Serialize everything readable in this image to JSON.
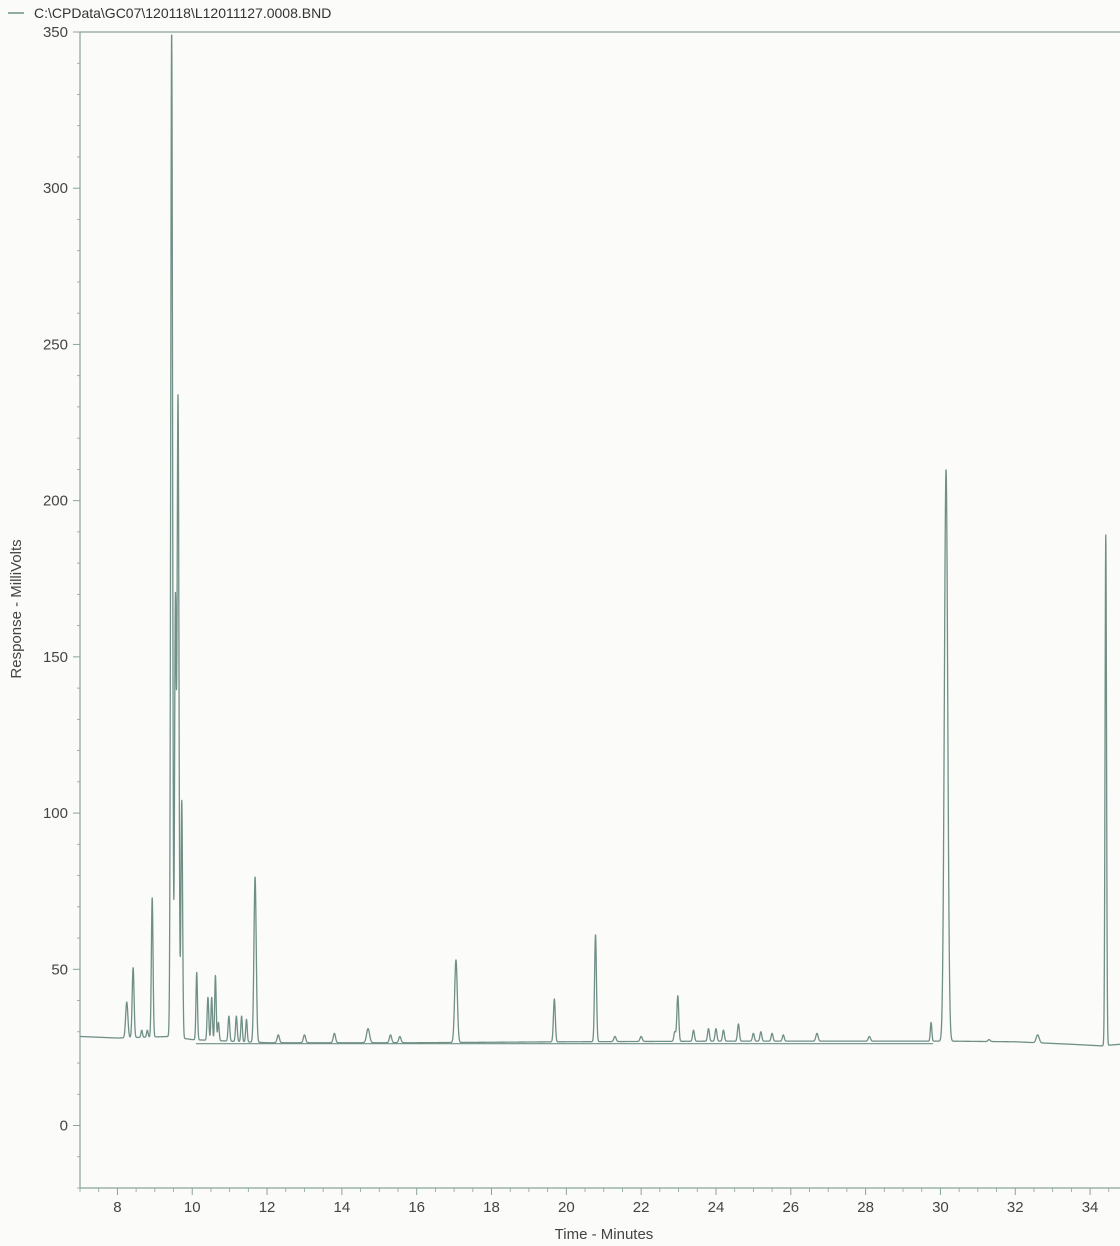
{
  "chart_data": {
    "type": "line",
    "title": "",
    "legend": {
      "placement": "top-left",
      "label": "C:\\CPData\\GC07\\120118\\L12011127.0008.BND"
    },
    "xlabel": "Time - Minutes",
    "ylabel": "Response - MilliVolts",
    "xlim": [
      7.0,
      34.8
    ],
    "ylim": [
      -20,
      350
    ],
    "xticks": [
      8,
      10,
      12,
      14,
      16,
      18,
      20,
      22,
      24,
      26,
      28,
      30,
      32,
      34
    ],
    "yticks": [
      0,
      50,
      100,
      150,
      200,
      250,
      300,
      350
    ],
    "grid": false,
    "color": "#6f8f87",
    "series": [
      {
        "baseline": [
          [
            7.0,
            28.5
          ],
          [
            8.0,
            28.0
          ],
          [
            9.4,
            28.5
          ],
          [
            10.0,
            27.5
          ],
          [
            12.0,
            26.5
          ],
          [
            16.0,
            26.5
          ],
          [
            20.0,
            26.8
          ],
          [
            24.0,
            27.0
          ],
          [
            28.0,
            27.0
          ],
          [
            29.8,
            27.0
          ],
          [
            30.3,
            27.0
          ],
          [
            32.0,
            26.8
          ],
          [
            33.5,
            26.0
          ],
          [
            34.3,
            25.5
          ],
          [
            34.8,
            26.0
          ]
        ],
        "baseline2": [
          [
            10.1,
            26.2
          ],
          [
            29.8,
            26.2
          ]
        ],
        "peaks": [
          {
            "rt": 8.25,
            "h": 39.5,
            "w": 0.03
          },
          {
            "rt": 8.42,
            "h": 50.5,
            "w": 0.025
          },
          {
            "rt": 8.65,
            "h": 30.5,
            "w": 0.02
          },
          {
            "rt": 8.8,
            "h": 30.5,
            "w": 0.02
          },
          {
            "rt": 8.93,
            "h": 73.0,
            "w": 0.022
          },
          {
            "rt": 9.45,
            "h": 350,
            "w": 0.025
          },
          {
            "rt": 9.55,
            "h": 166,
            "w": 0.022
          },
          {
            "rt": 9.62,
            "h": 233,
            "w": 0.025
          },
          {
            "rt": 9.72,
            "h": 104,
            "w": 0.022
          },
          {
            "rt": 10.12,
            "h": 49,
            "w": 0.02
          },
          {
            "rt": 10.42,
            "h": 41,
            "w": 0.022
          },
          {
            "rt": 10.52,
            "h": 41,
            "w": 0.02
          },
          {
            "rt": 10.62,
            "h": 48,
            "w": 0.02
          },
          {
            "rt": 10.7,
            "h": 33,
            "w": 0.02
          },
          {
            "rt": 10.98,
            "h": 35,
            "w": 0.022
          },
          {
            "rt": 11.18,
            "h": 35,
            "w": 0.022
          },
          {
            "rt": 11.32,
            "h": 35,
            "w": 0.02
          },
          {
            "rt": 11.45,
            "h": 34,
            "w": 0.02
          },
          {
            "rt": 11.68,
            "h": 79.5,
            "w": 0.03
          },
          {
            "rt": 12.3,
            "h": 29,
            "w": 0.03
          },
          {
            "rt": 13.0,
            "h": 29,
            "w": 0.03
          },
          {
            "rt": 13.8,
            "h": 29.5,
            "w": 0.03
          },
          {
            "rt": 14.7,
            "h": 31,
            "w": 0.04
          },
          {
            "rt": 15.3,
            "h": 29,
            "w": 0.03
          },
          {
            "rt": 15.55,
            "h": 28.5,
            "w": 0.03
          },
          {
            "rt": 17.05,
            "h": 53,
            "w": 0.035
          },
          {
            "rt": 19.68,
            "h": 40.5,
            "w": 0.025
          },
          {
            "rt": 20.78,
            "h": 61,
            "w": 0.025
          },
          {
            "rt": 21.3,
            "h": 28.5,
            "w": 0.03
          },
          {
            "rt": 22.0,
            "h": 28.5,
            "w": 0.03
          },
          {
            "rt": 22.9,
            "h": 30,
            "w": 0.025
          },
          {
            "rt": 22.98,
            "h": 41.5,
            "w": 0.025
          },
          {
            "rt": 23.4,
            "h": 30.5,
            "w": 0.025
          },
          {
            "rt": 23.8,
            "h": 31,
            "w": 0.025
          },
          {
            "rt": 24.0,
            "h": 31,
            "w": 0.025
          },
          {
            "rt": 24.2,
            "h": 30.5,
            "w": 0.025
          },
          {
            "rt": 24.6,
            "h": 32.5,
            "w": 0.025
          },
          {
            "rt": 25.0,
            "h": 29.5,
            "w": 0.025
          },
          {
            "rt": 25.2,
            "h": 30,
            "w": 0.025
          },
          {
            "rt": 25.5,
            "h": 29.5,
            "w": 0.025
          },
          {
            "rt": 25.8,
            "h": 29,
            "w": 0.025
          },
          {
            "rt": 26.7,
            "h": 29.5,
            "w": 0.03
          },
          {
            "rt": 28.1,
            "h": 28.5,
            "w": 0.03
          },
          {
            "rt": 29.75,
            "h": 33,
            "w": 0.02
          },
          {
            "rt": 30.15,
            "h": 210,
            "w": 0.045
          },
          {
            "rt": 31.3,
            "h": 27.5,
            "w": 0.03
          },
          {
            "rt": 32.6,
            "h": 29,
            "w": 0.04
          },
          {
            "rt": 34.42,
            "h": 189,
            "w": 0.02
          }
        ]
      }
    ]
  }
}
